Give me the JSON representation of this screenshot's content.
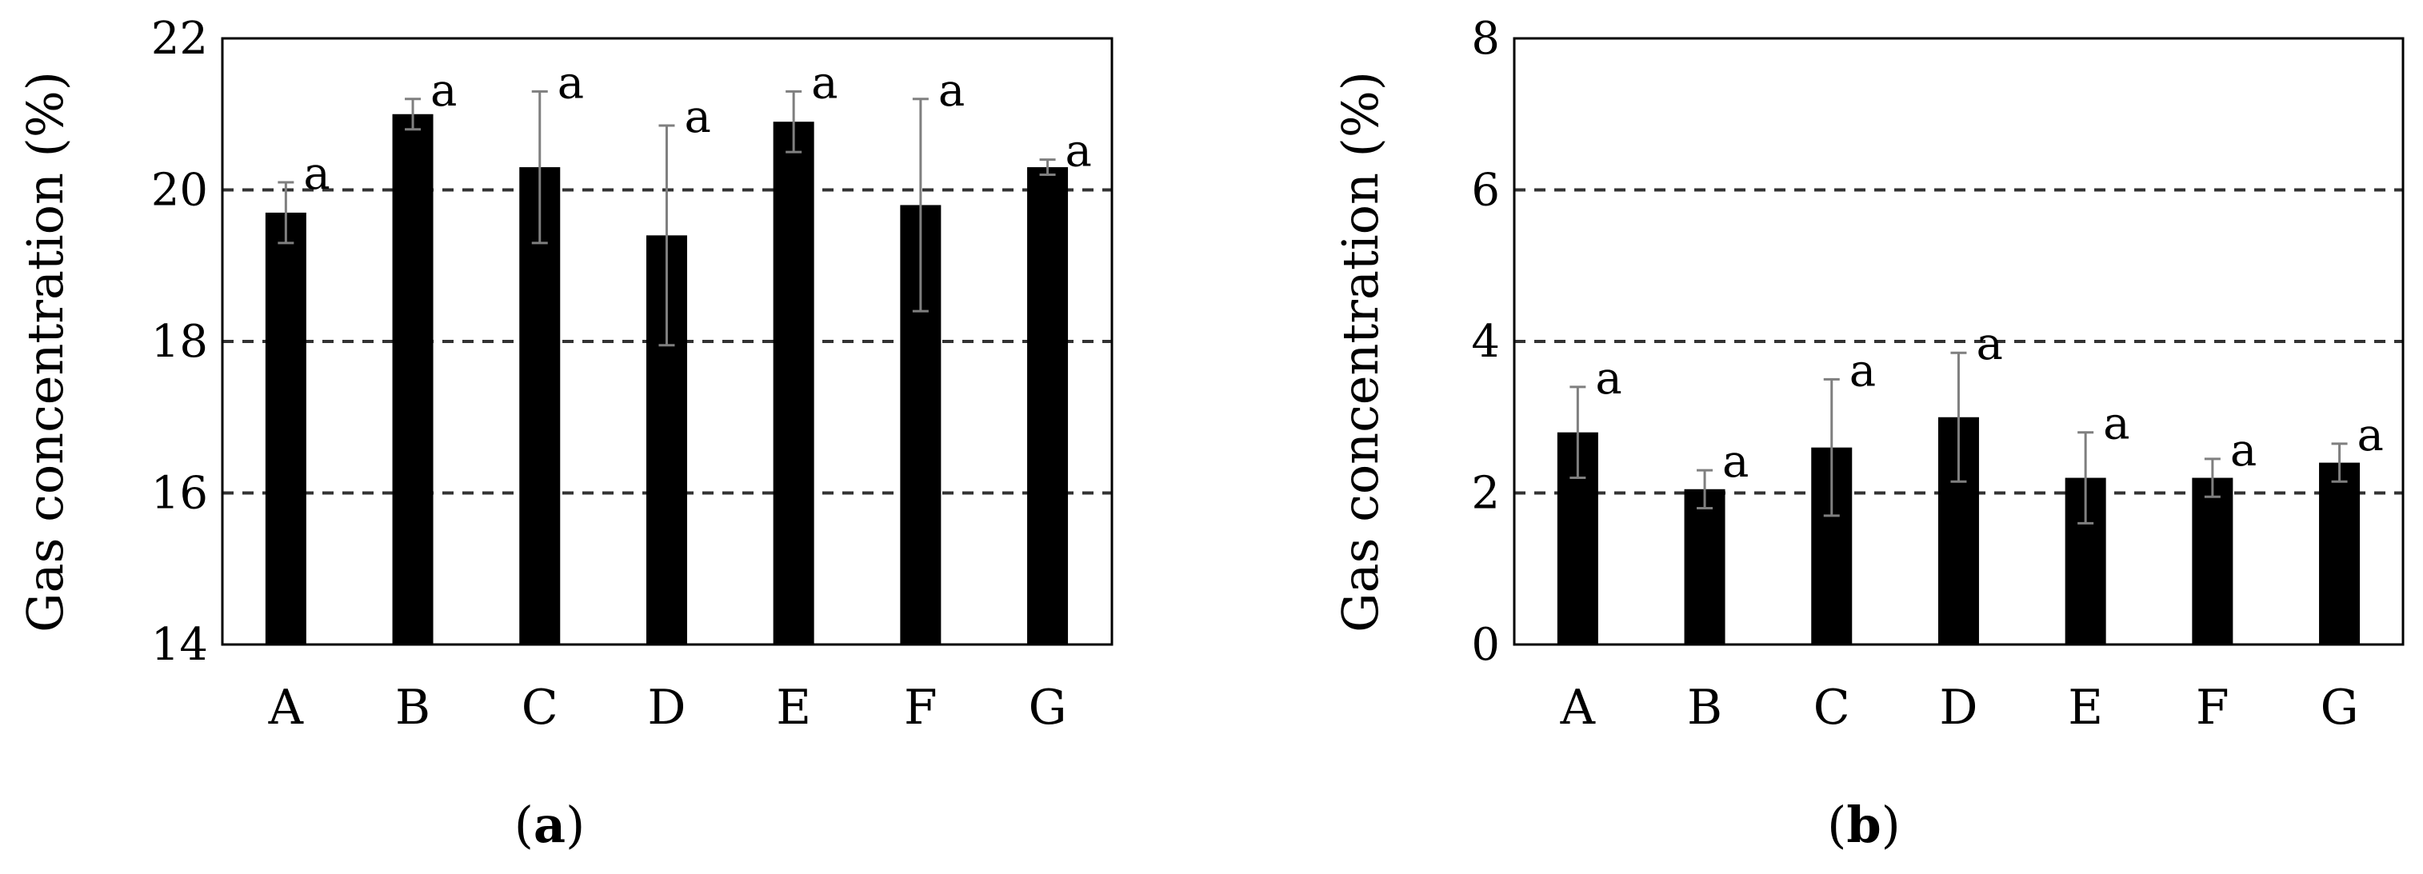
{
  "colors": {
    "bar": "#000000",
    "error_bar": "#7f7f7f",
    "grid": "#333333",
    "frame": "#000000"
  },
  "chart_data": [
    {
      "type": "bar",
      "panel_label": "a",
      "ylabel": "Gas concentration (%)",
      "xlabel": "",
      "categories": [
        "A",
        "B",
        "C",
        "D",
        "E",
        "F",
        "G"
      ],
      "values": [
        19.7,
        21.0,
        20.3,
        19.4,
        20.9,
        19.8,
        20.3
      ],
      "errors": [
        0.4,
        0.2,
        1.0,
        1.45,
        0.4,
        1.4,
        0.1
      ],
      "significance": [
        "a",
        "a",
        "a",
        "a",
        "a",
        "a",
        "a"
      ],
      "ylim": [
        14,
        22
      ],
      "yticks": [
        "14",
        "16",
        "18",
        "20",
        "22"
      ],
      "grid": "dashed horizontal at 16, 18, 20",
      "legend": "none"
    },
    {
      "type": "bar",
      "panel_label": "b",
      "ylabel": "Gas concentration (%)",
      "xlabel": "",
      "categories": [
        "A",
        "B",
        "C",
        "D",
        "E",
        "F",
        "G"
      ],
      "values": [
        2.8,
        2.05,
        2.6,
        3.0,
        2.2,
        2.2,
        2.4
      ],
      "errors": [
        0.6,
        0.25,
        0.9,
        0.85,
        0.6,
        0.25,
        0.25
      ],
      "significance": [
        "a",
        "a",
        "a",
        "a",
        "a",
        "a",
        "a"
      ],
      "ylim": [
        0,
        8
      ],
      "yticks": [
        "0",
        "2",
        "4",
        "6",
        "8"
      ],
      "grid": "dashed horizontal at 2, 4, 6",
      "legend": "none"
    }
  ]
}
